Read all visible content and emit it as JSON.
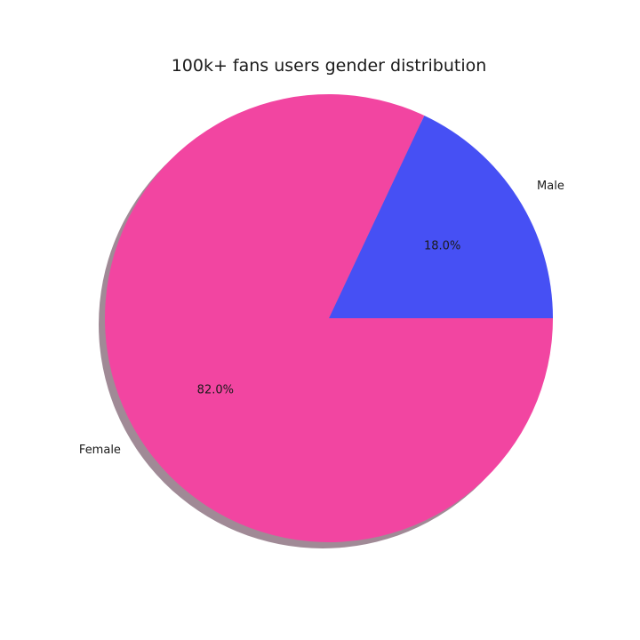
{
  "chart_data": {
    "type": "pie",
    "title": "100k+ fans users gender distribution",
    "slices": [
      {
        "label": "Male",
        "value": 18.0,
        "pct_text": "18.0%",
        "color": "#4650f4"
      },
      {
        "label": "Female",
        "value": 82.0,
        "pct_text": "82.0%",
        "color": "#f245a1"
      }
    ],
    "shadow": true,
    "shadow_color": "#a08a96",
    "start_angle_deg": 0,
    "direction": "counterclockwise"
  }
}
